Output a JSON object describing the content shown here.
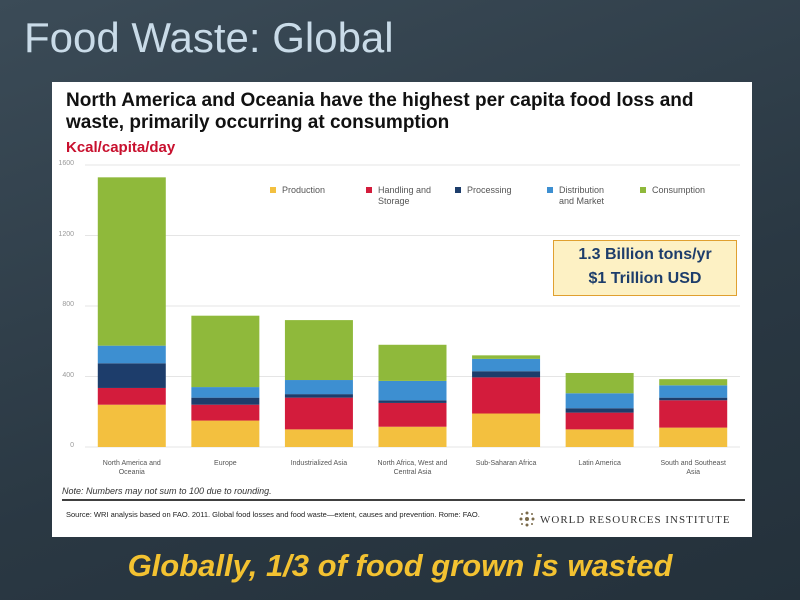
{
  "slide": {
    "title": "Food Waste: Global",
    "tagline": "Globally, 1/3 of food grown is wasted"
  },
  "chart_data": {
    "type": "bar",
    "stacked": true,
    "title": "North America and Oceania have the highest per capita food loss and waste, primarily occurring at consumption",
    "y_label": "Kcal/capita/day",
    "categories": [
      "North America and Oceania",
      "Europe",
      "Industrialized Asia",
      "North Africa, West and Central Asia",
      "Sub-Saharan Africa",
      "Latin America",
      "South and Southeast Asia"
    ],
    "series": [
      {
        "name": "Production",
        "color": "#f3c03f",
        "values": [
          240,
          150,
          100,
          115,
          190,
          100,
          110
        ]
      },
      {
        "name": "Handling and Storage",
        "color": "#d31c3c",
        "values": [
          95,
          90,
          180,
          135,
          205,
          95,
          155
        ]
      },
      {
        "name": "Processing",
        "color": "#1d3d6b",
        "values": [
          140,
          40,
          20,
          15,
          35,
          25,
          15
        ]
      },
      {
        "name": "Distribution and Market",
        "color": "#3d8fd1",
        "values": [
          100,
          60,
          80,
          110,
          70,
          85,
          70
        ]
      },
      {
        "name": "Consumption",
        "color": "#8fb93b",
        "values": [
          955,
          405,
          340,
          205,
          20,
          115,
          35
        ]
      }
    ],
    "ylim": [
      0,
      1600
    ],
    "yticks": [
      0,
      400,
      800,
      1200,
      1600
    ],
    "grid": true,
    "annotation": [
      "1.3 Billion tons/yr",
      "$1 Trillion USD"
    ],
    "note": "Note: Numbers may not sum to 100 due to rounding.",
    "source": "Source: WRI analysis based on FAO. 2011. Global food losses and food waste—extent, causes and prevention. Rome: FAO."
  },
  "logo": "WORLD RESOURCES INSTITUTE"
}
